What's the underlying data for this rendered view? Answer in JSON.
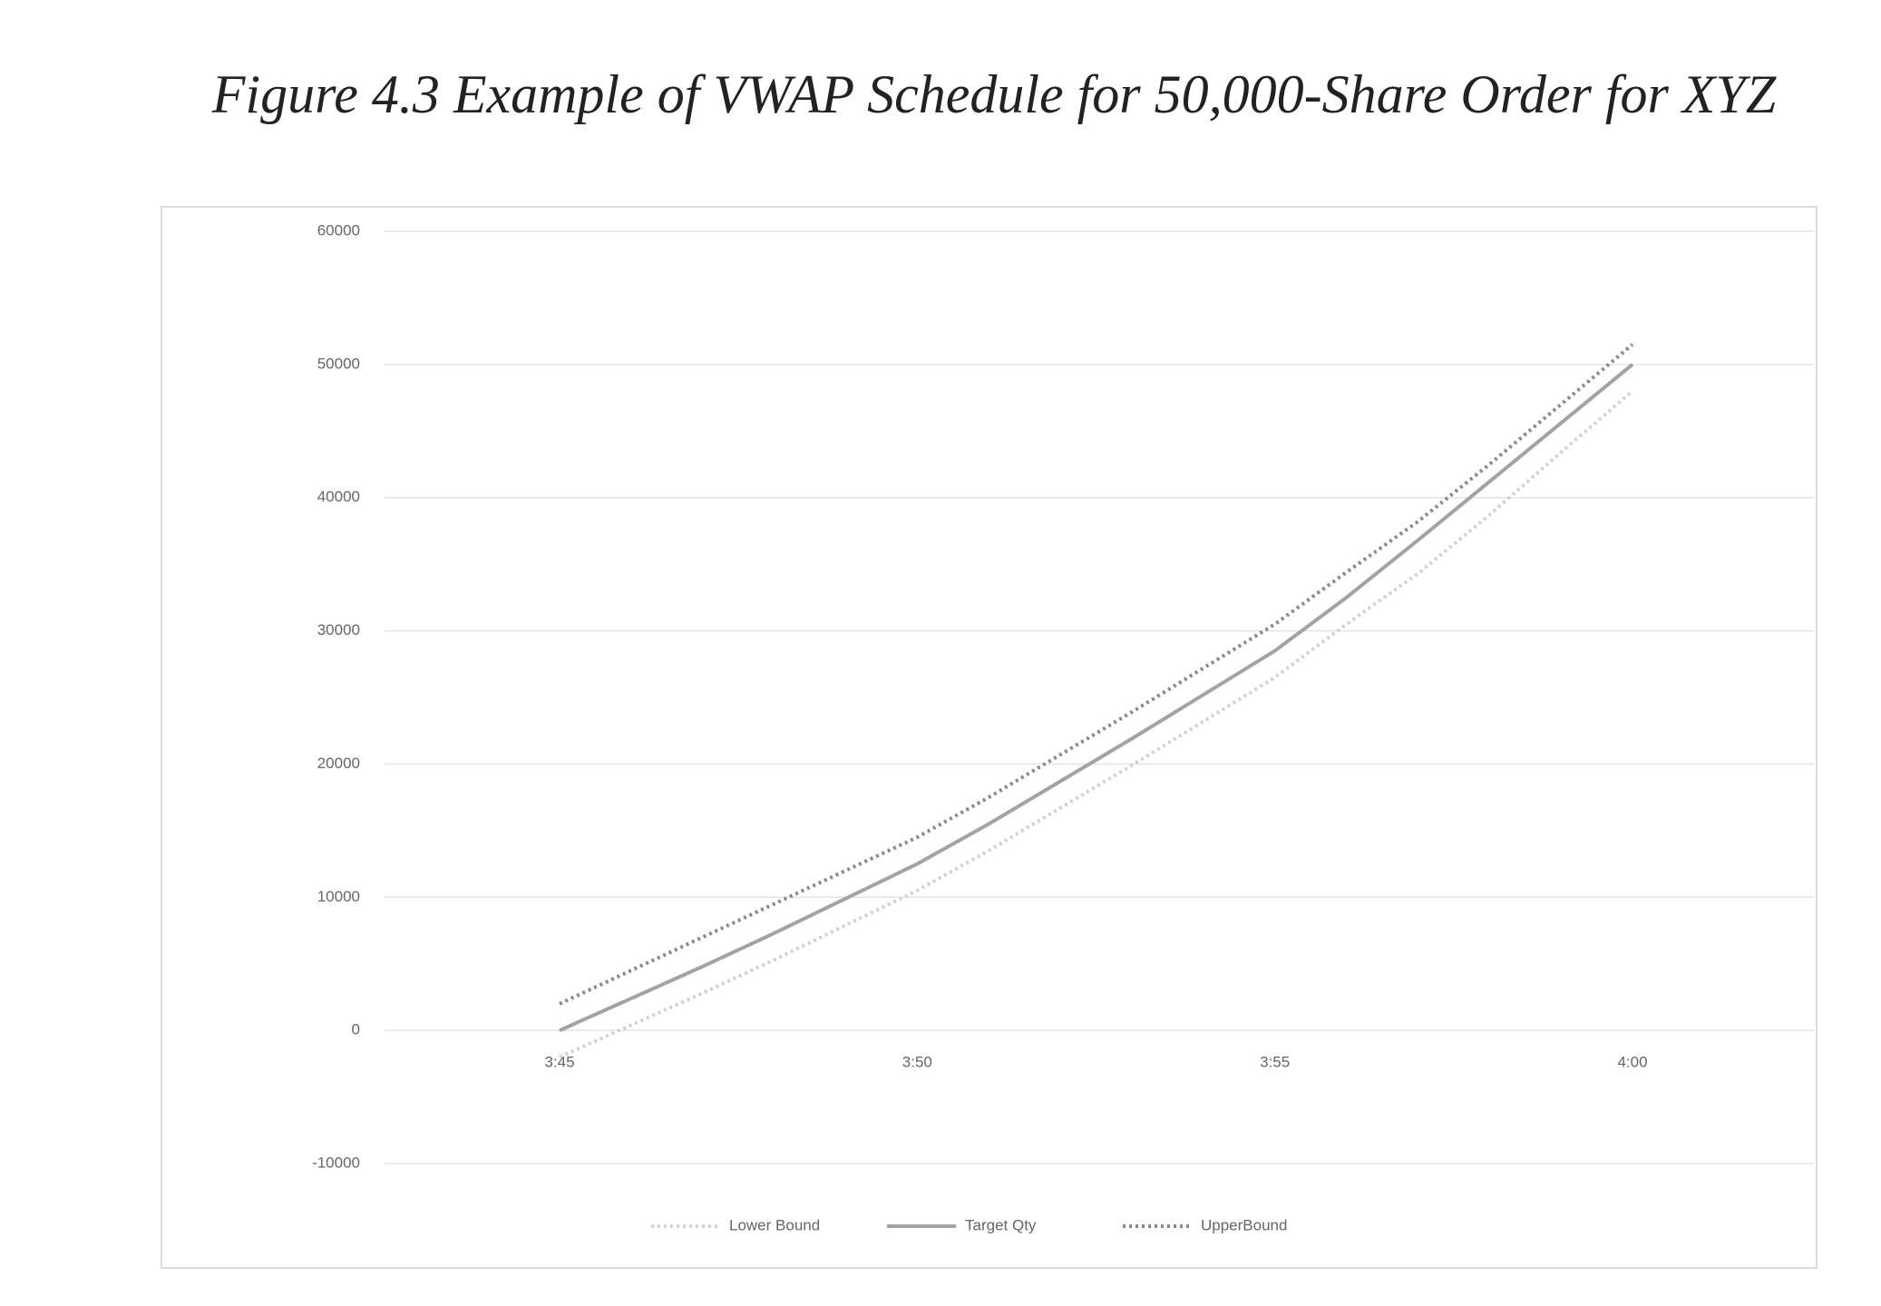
{
  "chart_data": {
    "type": "line",
    "title": "Figure 4.3  Example of VWAP Schedule for 50,000-Share Order for XYZ",
    "categories": [
      "3:45",
      null,
      null,
      null,
      null,
      "3:50",
      null,
      null,
      null,
      null,
      "3:55",
      null,
      null,
      null,
      null,
      "4:00"
    ],
    "series": [
      {
        "name": "Lower Bound",
        "color": "#d2d2d2",
        "dash": "dotted",
        "values": [
          -2000,
          400,
          2800,
          5300,
          7900,
          10500,
          13500,
          16700,
          19900,
          23200,
          26500,
          30500,
          34300,
          38700,
          43400,
          48000
        ]
      },
      {
        "name": "Target Qty",
        "color": "#a3a3a3",
        "dash": "solid",
        "values": [
          0,
          2400,
          4800,
          7300,
          9900,
          12500,
          15500,
          18700,
          21900,
          25200,
          28500,
          32500,
          36800,
          41200,
          45600,
          50000
        ]
      },
      {
        "name": "UpperBound",
        "color": "#8a8a8a",
        "dash": "dotted",
        "values": [
          2000,
          4500,
          7000,
          9500,
          12000,
          14500,
          17500,
          20700,
          23900,
          27200,
          30500,
          34400,
          38200,
          42500,
          47000,
          51500
        ]
      }
    ],
    "ylim": [
      -10000,
      60000
    ],
    "yticks": [
      -10000,
      0,
      10000,
      20000,
      30000,
      40000,
      50000,
      60000
    ],
    "grid": true,
    "legend": "bottom"
  }
}
